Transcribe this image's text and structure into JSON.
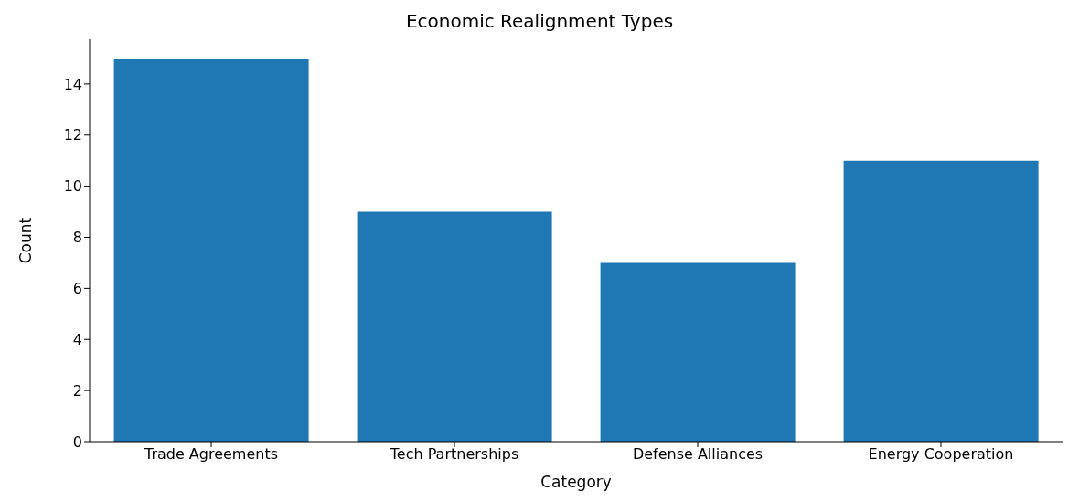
{
  "chart_data": {
    "type": "bar",
    "title": "Economic Realignment Types",
    "xlabel": "Category",
    "ylabel": "Count",
    "categories": [
      "Trade Agreements",
      "Tech Partnerships",
      "Defense Alliances",
      "Energy Cooperation"
    ],
    "values": [
      15,
      9,
      7,
      11
    ],
    "color": "#1f77b4",
    "ylim": [
      0,
      15.75
    ],
    "yticks": [
      0,
      2,
      4,
      6,
      8,
      10,
      12,
      14
    ],
    "grid": false
  }
}
